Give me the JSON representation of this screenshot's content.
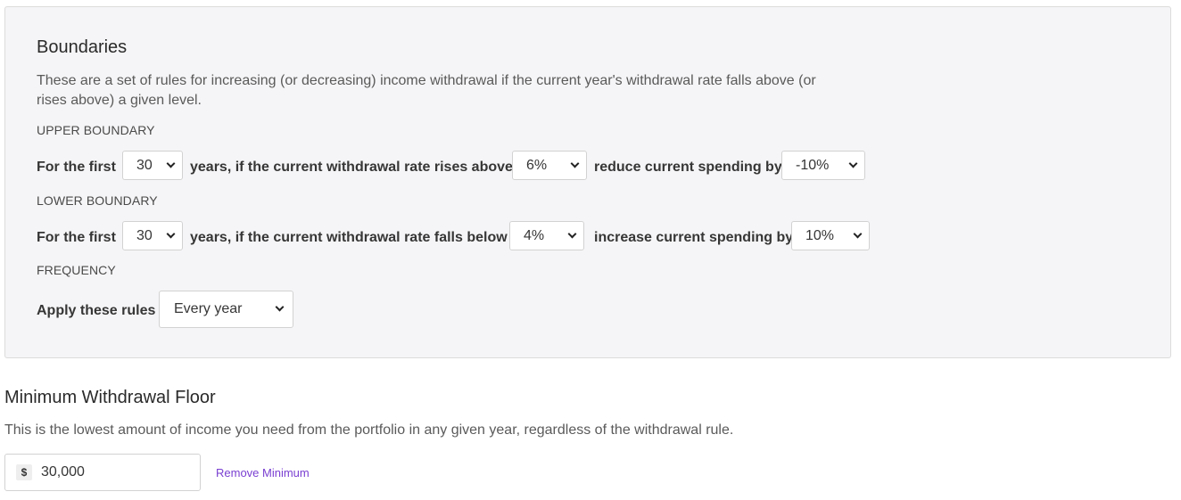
{
  "boundaries": {
    "title": "Boundaries",
    "description": "These are a set of rules for increasing (or decreasing) income withdrawal if the current year's withdrawal rate falls above (or rises above) a given level.",
    "upper": {
      "label": "UPPER BOUNDARY",
      "prefix": "For the first",
      "years": "30",
      "middle": "years, if the current withdrawal rate rises above",
      "rate": "6%",
      "action": "reduce current spending by",
      "change": "-10%"
    },
    "lower": {
      "label": "LOWER BOUNDARY",
      "prefix": "For the first",
      "years": "30",
      "middle": "years, if the current withdrawal rate falls below",
      "rate": "4%",
      "action": "increase current spending by",
      "change": "10%"
    },
    "frequency": {
      "label": "FREQUENCY",
      "prefix": "Apply these rules",
      "value": "Every year"
    }
  },
  "floor": {
    "title": "Minimum Withdrawal Floor",
    "description": "This is the lowest amount of income you need from the portfolio in any given year, regardless of the withdrawal rule.",
    "currency_symbol": "$",
    "value": "30,000",
    "remove_label": "Remove Minimum"
  },
  "colors": {
    "link": "#7a3fd1",
    "card_background": "#f5f5f7"
  },
  "icons": {
    "dropdown": "chevron-down-icon"
  }
}
